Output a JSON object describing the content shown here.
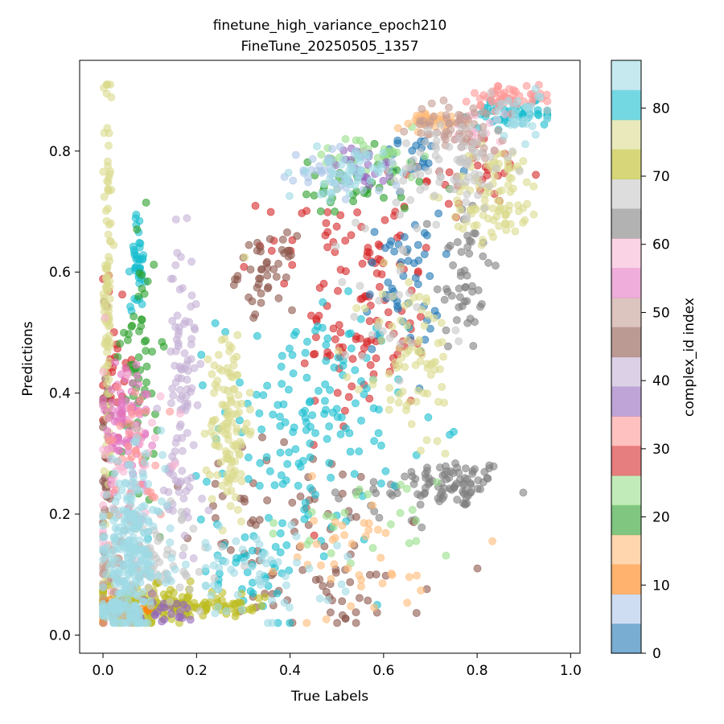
{
  "chart_data": {
    "type": "scatter",
    "title": "finetune_high_variance_epoch210",
    "subtitle": "FineTune_20250505_1357",
    "xlabel": "True Labels",
    "ylabel": "Predictions",
    "xlim": [
      -0.05,
      1.02
    ],
    "ylim": [
      -0.03,
      0.95
    ],
    "x_ticks": [
      0.0,
      0.2,
      0.4,
      0.6,
      0.8,
      1.0
    ],
    "x_tick_labels": [
      "0.0",
      "0.2",
      "0.4",
      "0.6",
      "0.8",
      "1.0"
    ],
    "y_ticks": [
      0.0,
      0.2,
      0.4,
      0.6,
      0.8
    ],
    "y_tick_labels": [
      "0.0",
      "0.2",
      "0.4",
      "0.6",
      "0.8"
    ],
    "grid": false,
    "point_alpha": 0.6,
    "colormap": "tab20",
    "colorbar": {
      "label": "complex_id index",
      "range": [
        0,
        87
      ],
      "ticks": [
        0,
        10,
        20,
        30,
        40,
        50,
        60,
        70,
        80
      ],
      "tick_labels": [
        "0",
        "10",
        "20",
        "30",
        "40",
        "50",
        "60",
        "70",
        "80"
      ],
      "colors": [
        "#1f77b4",
        "#aec7e8",
        "#ff7f0e",
        "#ffbb78",
        "#2ca02c",
        "#98df8a",
        "#d62728",
        "#ff9896",
        "#9467bd",
        "#c5b0d5",
        "#8c564b",
        "#c49c94",
        "#e377c2",
        "#f7b6d2",
        "#7f7f7f",
        "#c7c7c7",
        "#bcbd22",
        "#dbdb8d",
        "#17becf",
        "#9edae5"
      ]
    },
    "clusters": [
      {
        "color": "#7f7f7f",
        "cx": 0.76,
        "cy": 0.25,
        "sx": 0.05,
        "sy": 0.02,
        "n": 70
      },
      {
        "color": "#7f7f7f",
        "cx": 0.77,
        "cy": 0.6,
        "sx": 0.03,
        "sy": 0.07,
        "n": 50
      },
      {
        "color": "#7f7f7f",
        "cx": 0.62,
        "cy": 0.23,
        "sx": 0.08,
        "sy": 0.03,
        "n": 30
      },
      {
        "color": "#d62728",
        "cx": 0.56,
        "cy": 0.5,
        "sx": 0.07,
        "sy": 0.08,
        "n": 90
      },
      {
        "color": "#d62728",
        "cx": 0.5,
        "cy": 0.65,
        "sx": 0.08,
        "sy": 0.05,
        "n": 40
      },
      {
        "color": "#d62728",
        "cx": 0.8,
        "cy": 0.76,
        "sx": 0.06,
        "sy": 0.03,
        "n": 30
      },
      {
        "color": "#d62728",
        "cx": 0.03,
        "cy": 0.45,
        "sx": 0.02,
        "sy": 0.08,
        "n": 30
      },
      {
        "color": "#1f77b4",
        "cx": 0.64,
        "cy": 0.58,
        "sx": 0.04,
        "sy": 0.06,
        "n": 50
      },
      {
        "color": "#1f77b4",
        "cx": 0.66,
        "cy": 0.79,
        "sx": 0.04,
        "sy": 0.02,
        "n": 20
      },
      {
        "color": "#8c564b",
        "cx": 0.35,
        "cy": 0.6,
        "sx": 0.03,
        "sy": 0.03,
        "n": 45
      },
      {
        "color": "#8c564b",
        "cx": 0.4,
        "cy": 0.2,
        "sx": 0.15,
        "sy": 0.06,
        "n": 50
      },
      {
        "color": "#8c564b",
        "cx": 0.5,
        "cy": 0.07,
        "sx": 0.1,
        "sy": 0.03,
        "n": 40
      },
      {
        "color": "#8c564b",
        "cx": 0.005,
        "cy": 0.3,
        "sx": 0.005,
        "sy": 0.12,
        "n": 30
      },
      {
        "color": "#17becf",
        "cx": 0.45,
        "cy": 0.35,
        "sx": 0.1,
        "sy": 0.1,
        "n": 150
      },
      {
        "color": "#17becf",
        "cx": 0.075,
        "cy": 0.62,
        "sx": 0.008,
        "sy": 0.04,
        "n": 40
      },
      {
        "color": "#17becf",
        "cx": 0.88,
        "cy": 0.86,
        "sx": 0.05,
        "sy": 0.01,
        "n": 50
      },
      {
        "color": "#17becf",
        "cx": 0.3,
        "cy": 0.12,
        "sx": 0.08,
        "sy": 0.04,
        "n": 40
      },
      {
        "color": "#dbdb8d",
        "cx": 0.27,
        "cy": 0.35,
        "sx": 0.02,
        "sy": 0.08,
        "n": 120
      },
      {
        "color": "#dbdb8d",
        "cx": 0.66,
        "cy": 0.45,
        "sx": 0.05,
        "sy": 0.08,
        "n": 80
      },
      {
        "color": "#dbdb8d",
        "cx": 0.84,
        "cy": 0.73,
        "sx": 0.05,
        "sy": 0.04,
        "n": 100
      },
      {
        "color": "#dbdb8d",
        "cx": 0.01,
        "cy": 0.55,
        "sx": 0.004,
        "sy": 0.22,
        "n": 120
      },
      {
        "color": "#bcbd22",
        "cx": 0.1,
        "cy": 0.05,
        "sx": 0.08,
        "sy": 0.015,
        "n": 150
      },
      {
        "color": "#bcbd22",
        "cx": 0.25,
        "cy": 0.05,
        "sx": 0.06,
        "sy": 0.01,
        "n": 40
      },
      {
        "color": "#2ca02c",
        "cx": 0.08,
        "cy": 0.45,
        "sx": 0.02,
        "sy": 0.1,
        "n": 60
      },
      {
        "color": "#2ca02c",
        "cx": 0.54,
        "cy": 0.74,
        "sx": 0.07,
        "sy": 0.03,
        "n": 40
      },
      {
        "color": "#98df8a",
        "cx": 0.57,
        "cy": 0.79,
        "sx": 0.06,
        "sy": 0.02,
        "n": 40
      },
      {
        "color": "#98df8a",
        "cx": 0.55,
        "cy": 0.18,
        "sx": 0.1,
        "sy": 0.04,
        "n": 25
      },
      {
        "color": "#c5b0d5",
        "cx": 0.17,
        "cy": 0.45,
        "sx": 0.015,
        "sy": 0.1,
        "n": 80
      },
      {
        "color": "#c5b0d5",
        "cx": 0.15,
        "cy": 0.25,
        "sx": 0.03,
        "sy": 0.05,
        "n": 30
      },
      {
        "color": "#9467bd",
        "cx": 0.56,
        "cy": 0.77,
        "sx": 0.03,
        "sy": 0.02,
        "n": 25
      },
      {
        "color": "#9467bd",
        "cx": 0.1,
        "cy": 0.04,
        "sx": 0.05,
        "sy": 0.01,
        "n": 30
      },
      {
        "color": "#e377c2",
        "cx": 0.05,
        "cy": 0.35,
        "sx": 0.025,
        "sy": 0.06,
        "n": 90
      },
      {
        "color": "#f7b6d2",
        "cx": 0.05,
        "cy": 0.25,
        "sx": 0.04,
        "sy": 0.1,
        "n": 50
      },
      {
        "color": "#f7b6d2",
        "cx": 0.8,
        "cy": 0.84,
        "sx": 0.03,
        "sy": 0.02,
        "n": 20
      },
      {
        "color": "#ff9896",
        "cx": 0.87,
        "cy": 0.89,
        "sx": 0.04,
        "sy": 0.01,
        "n": 50
      },
      {
        "color": "#ff9896",
        "cx": 0.07,
        "cy": 0.3,
        "sx": 0.03,
        "sy": 0.06,
        "n": 40
      },
      {
        "color": "#ffbb78",
        "cx": 0.7,
        "cy": 0.85,
        "sx": 0.04,
        "sy": 0.007,
        "n": 40
      },
      {
        "color": "#ffbb78",
        "cx": 0.5,
        "cy": 0.12,
        "sx": 0.12,
        "sy": 0.06,
        "n": 40
      },
      {
        "color": "#ff7f0e",
        "cx": 0.05,
        "cy": 0.04,
        "sx": 0.04,
        "sy": 0.01,
        "n": 20
      },
      {
        "color": "#c49c94",
        "cx": 0.76,
        "cy": 0.84,
        "sx": 0.05,
        "sy": 0.02,
        "n": 60
      },
      {
        "color": "#c49c94",
        "cx": 0.03,
        "cy": 0.1,
        "sx": 0.03,
        "sy": 0.04,
        "n": 40
      },
      {
        "color": "#c7c7c7",
        "cx": 0.75,
        "cy": 0.78,
        "sx": 0.06,
        "sy": 0.04,
        "n": 80
      },
      {
        "color": "#c7c7c7",
        "cx": 0.6,
        "cy": 0.55,
        "sx": 0.08,
        "sy": 0.08,
        "n": 30
      },
      {
        "color": "#c7c7c7",
        "cx": 0.12,
        "cy": 0.12,
        "sx": 0.08,
        "sy": 0.05,
        "n": 60
      },
      {
        "color": "#aec7e8",
        "cx": 0.5,
        "cy": 0.77,
        "sx": 0.05,
        "sy": 0.02,
        "n": 40
      },
      {
        "color": "#9edae5",
        "cx": 0.52,
        "cy": 0.76,
        "sx": 0.04,
        "sy": 0.02,
        "n": 50
      },
      {
        "color": "#9edae5",
        "cx": 0.9,
        "cy": 0.86,
        "sx": 0.04,
        "sy": 0.02,
        "n": 30
      },
      {
        "color": "#9edae5",
        "cx": 0.3,
        "cy": 0.1,
        "sx": 0.1,
        "sy": 0.04,
        "n": 60
      },
      {
        "color": "#9edae5",
        "cx": 0.06,
        "cy": 0.14,
        "sx": 0.035,
        "sy": 0.07,
        "n": 250
      },
      {
        "color": "#9edae5",
        "cx": 0.03,
        "cy": 0.04,
        "sx": 0.03,
        "sy": 0.008,
        "n": 60
      }
    ]
  }
}
